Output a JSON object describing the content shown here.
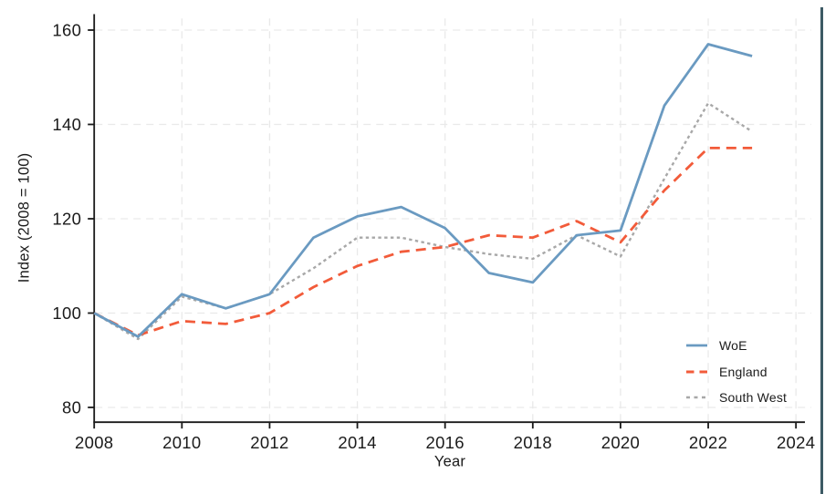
{
  "window": {
    "edge_accent_color": "#3d5a64",
    "background_color": "#ffffff"
  },
  "chart_data": {
    "type": "line",
    "title": "",
    "xlabel": "Year",
    "ylabel": "Index (2008 = 100)",
    "x": [
      2008,
      2009,
      2010,
      2011,
      2012,
      2013,
      2014,
      2015,
      2016,
      2017,
      2018,
      2019,
      2020,
      2021,
      2022,
      2023
    ],
    "xticks": [
      2008,
      2010,
      2012,
      2014,
      2016,
      2018,
      2020,
      2022,
      2024
    ],
    "yticks": [
      80,
      100,
      120,
      140,
      160
    ],
    "xlim": [
      2007.8,
      2024.4
    ],
    "ylim": [
      78,
      161.5
    ],
    "grid": "light dashed gridlines at every x and y tick",
    "legend_position": "inside lower right",
    "axis_color": "#1a1a1a",
    "grid_color": "#e9e9e9",
    "series": [
      {
        "name": "WoE",
        "color": "#6a9ac1",
        "style": "solid",
        "values": [
          100,
          95,
          104,
          101,
          104,
          116,
          120.5,
          122.5,
          118,
          108.5,
          106.5,
          116.5,
          117.5,
          144,
          157,
          154.5
        ]
      },
      {
        "name": "England",
        "color": "#f25b3a",
        "style": "dashed",
        "values": [
          100,
          95.3,
          98.3,
          97.7,
          100,
          105.5,
          110,
          113,
          114,
          116.5,
          116,
          119.5,
          115,
          126,
          135,
          135
        ]
      },
      {
        "name": "South West",
        "color": "#a8a8a8",
        "style": "dotted",
        "values": [
          100,
          94.5,
          103.5,
          101,
          104,
          109.5,
          116,
          116,
          114,
          112.5,
          111.5,
          116.5,
          112,
          128.5,
          144.5,
          138.5
        ]
      }
    ]
  }
}
